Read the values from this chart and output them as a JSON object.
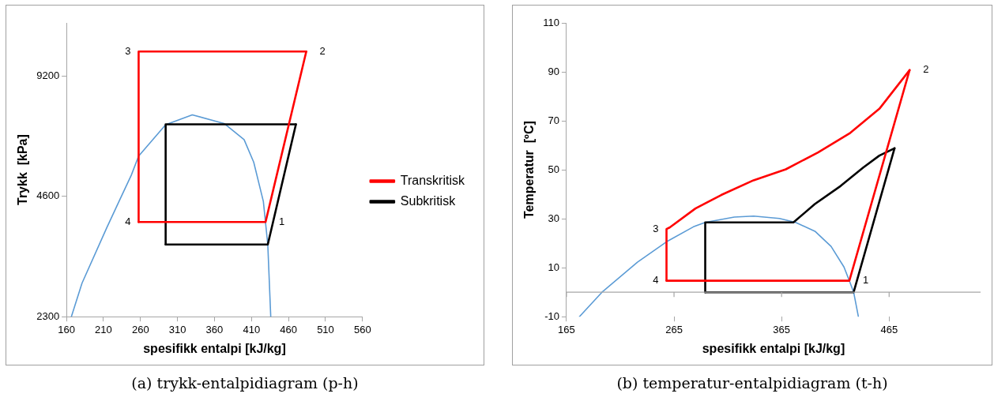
{
  "chart_data": [
    {
      "type": "line",
      "xlabel": "spesifikk entalpi [kJ/kg]",
      "ylabel": "Trykk  [kPa]",
      "log": "y",
      "xlim": [
        160,
        560
      ],
      "xticks": [
        160,
        210,
        260,
        310,
        360,
        410,
        460,
        510,
        560
      ],
      "ylim": [
        2300,
        12500
      ],
      "yticks": [
        2300,
        4600,
        9200
      ],
      "marker": "none",
      "legend": "right",
      "grid": false,
      "series": [
        {
          "name": "Transkritisk",
          "color": "#ff0000",
          "x": [
            257.5,
            429,
            484
          ],
          "values": [
            3970,
            3970,
            10600
          ]
        },
        {
          "color": "#ff0000",
          "x": [
            257.5,
            257.5,
            484
          ],
          "values": [
            3970,
            10600,
            10600
          ]
        },
        {
          "name": "Subkritisk",
          "color": "#000000",
          "x": [
            294,
            432,
            470
          ],
          "values": [
            3486,
            3486,
            6970
          ]
        },
        {
          "color": "#000000",
          "x": [
            294,
            294,
            470
          ],
          "values": [
            3486,
            6970,
            6970
          ]
        },
        {
          "color": "#5b9bd5",
          "x": [
            166.6,
            181,
            214.5,
            231,
            247.6,
            257.5,
            294,
            330,
            373,
            400,
            413,
            426,
            432,
            436
          ],
          "values": [
            2300,
            2790,
            3843,
            4470,
            5200,
            5800,
            6950,
            7360,
            7000,
            6380,
            5600,
            4470,
            3486,
            2300
          ]
        }
      ],
      "annotations": [
        {
          "text": "1",
          "x": 429,
          "y": 3970
        },
        {
          "text": "2",
          "x": 484,
          "y": 10600
        },
        {
          "text": "3",
          "x": 257.5,
          "y": 10600
        },
        {
          "text": "4",
          "x": 257.5,
          "y": 3970
        },
        "(a) trykk-entalpidiagram (p-h)"
      ]
    },
    {
      "type": "line",
      "xlabel": "spesifikk entalpi [kJ/kg]",
      "ylabel": "Temperatur  [ºC]",
      "xlim": [
        165,
        550
      ],
      "xticks": [
        165,
        265,
        365,
        465
      ],
      "ylim": [
        -10,
        110
      ],
      "yticks": [
        -10,
        10,
        30,
        50,
        70,
        90,
        110
      ],
      "marker": "none",
      "legend": false,
      "grid": false,
      "ref_lines": [
        {
          "axis": "y",
          "value": 0,
          "color": "#a6a6a6"
        }
      ],
      "series": [
        {
          "color": "#ff0000",
          "x": [
            258,
            428,
            484
          ],
          "values": [
            4.7,
            4.7,
            90.7
          ]
        },
        {
          "color": "#ff0000",
          "x": [
            258,
            258,
            260.9,
            284.9,
            308.9,
            338.9,
            368.9,
            398.9,
            428.9,
            455.9,
            484
          ],
          "values": [
            4.7,
            25.8,
            26.4,
            34.2,
            39.7,
            45.7,
            50.2,
            57.1,
            65.1,
            74.9,
            90.7
          ]
        },
        {
          "color": "#000000",
          "x": [
            294,
            432,
            470
          ],
          "values": [
            0,
            0,
            58.8
          ]
        },
        {
          "color": "#000000",
          "x": [
            294,
            294,
            376,
            395.9,
            419.9,
            440.9,
            455.9,
            470
          ],
          "values": [
            0,
            28.5,
            28.5,
            36.0,
            43.4,
            50.9,
            55.8,
            58.8
          ]
        },
        {
          "color": "#5b9bd5",
          "x": [
            177,
            198,
            231,
            258,
            283,
            294,
            321,
            339,
            363,
            378,
            396,
            411,
            423,
            428,
            432,
            436.4
          ],
          "values": [
            -10,
            0,
            12.3,
            20.6,
            26.7,
            28.5,
            30.7,
            31.1,
            30.1,
            28.5,
            24.9,
            18.7,
            10.3,
            4.7,
            0,
            -10
          ]
        }
      ],
      "annotations": [
        {
          "text": "1",
          "x": 428,
          "y": 4.7
        },
        {
          "text": "2",
          "x": 484,
          "y": 90.7
        },
        {
          "text": "3",
          "x": 258,
          "y": 25.8
        },
        {
          "text": "4",
          "x": 258,
          "y": 4.7
        },
        "(b) temperatur-entalpidiagram (t-h)"
      ]
    }
  ]
}
